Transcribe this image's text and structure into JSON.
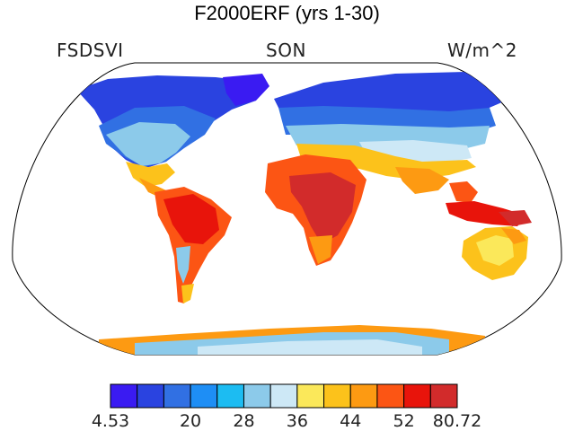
{
  "title": "F2000ERF (yrs 1-30)",
  "left_label": "FSDSVI",
  "center_label": "SON",
  "right_label": "W/m^2",
  "colorbar": {
    "colors": [
      "#3a1bf2",
      "#2a43e0",
      "#3170e3",
      "#1e8ef5",
      "#1cbcf2",
      "#8ccaea",
      "#cde8f6",
      "#fbe85a",
      "#fcc21b",
      "#fd9a12",
      "#fc5514",
      "#e8140b",
      "#d22b2b"
    ],
    "tick_labels": [
      "4.53",
      "20",
      "28",
      "36",
      "44",
      "52",
      "80.72"
    ]
  }
}
